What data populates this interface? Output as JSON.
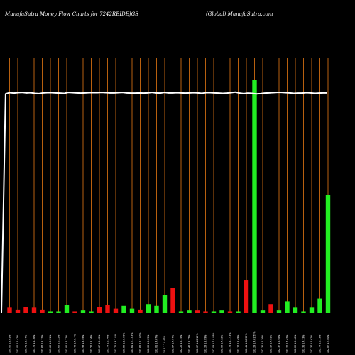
{
  "header": {
    "left": "MunafaSutra  Money Flow  Charts for 7242RBIDEJGS",
    "right": "(Global)                   MunafaSutra.com"
  },
  "colors": {
    "background": "#000000",
    "gridline": "#b8600f",
    "inflow": "#22ee22",
    "outflow": "#ee1111",
    "line": "#ffffff"
  },
  "chart_data": {
    "type": "bar",
    "title": "MunafaSutra  Money Flow  Charts for 7242RBIDEJGS",
    "categories": [
      "100.00 1.8.61%",
      "101.00 2.4.42%",
      "101.71 1.9.14%",
      "101.76 1.4.16%",
      "101.66 1.8.12%",
      "101.63 1.9.21%",
      "101.65 1.0.22%",
      "101.80 1.6.72%",
      "101.49 1.7.8.4%",
      "101.99 1.9.49%",
      "101.50 1.8.14%",
      "101.67 1.8.42%",
      "101.74 1.6.14%",
      "101.70 1.9.2.8%",
      "101.50 1.2.8.99%",
      "101.64 1.7.1.63%",
      "101.65 1.1.1.60%",
      "102.00 1.8.89%",
      "102.01 1.4.67%",
      "10.0 1.7.8.47%",
      "102.07 1.7.94%",
      "102.20 1.6.15%",
      "102.40 1.8.15%",
      "102.07 1.10.10%",
      "102.23 1.8.89%",
      "102.09 1.7.8.09%",
      "102.09 1.7.32%",
      "101.73 1.5.1.93%",
      "102.16 1.8.49%",
      "102.41 1.66.59%",
      "102.29 1.4.61.59%",
      "102.30 1.4.36%",
      "102.14 1.7.01%",
      "102.37 1.6.98%",
      "102.22 1.7.42%",
      "102.22 1.8.46%",
      "102.31 1.4.13%",
      "102.37 1.4.62%",
      "102.74 1.6.13%",
      "102.87 1.7.00%"
    ],
    "values": [
      6,
      4,
      7,
      6,
      4,
      2,
      2,
      9,
      2,
      3,
      2,
      7,
      9,
      5,
      8,
      5,
      4,
      10,
      8,
      20,
      28,
      2,
      3,
      3,
      2,
      2,
      3,
      2,
      2,
      36,
      257,
      3,
      10,
      3,
      13,
      6,
      2,
      6,
      16,
      130
    ],
    "direction": [
      "out",
      "out",
      "out",
      "out",
      "out",
      "in",
      "in",
      "in",
      "out",
      "in",
      "in",
      "out",
      "out",
      "out",
      "in",
      "in",
      "out",
      "in",
      "in",
      "in",
      "out",
      "in",
      "in",
      "out",
      "out",
      "in",
      "in",
      "out",
      "in",
      "out",
      "in",
      "in",
      "out",
      "in",
      "in",
      "in",
      "in",
      "in",
      "in",
      "in"
    ],
    "line_values": [
      0,
      86,
      86.5,
      86.3,
      86.5,
      86.6,
      86.4,
      86.5,
      86.2,
      86.1,
      86.4,
      86.5,
      86.5,
      86.4,
      86.3,
      86.2,
      86.6,
      86.5,
      86.4,
      86.3,
      86.4,
      86.5,
      86.5,
      86.5,
      86.6,
      86.5,
      86.4,
      86.4,
      86.5,
      86.6,
      86.4,
      86.3,
      86.3,
      86.4,
      86.3,
      86.4,
      86.6,
      86.4,
      86.3,
      86.6,
      86.4,
      86.4,
      86.5,
      86.4,
      86.3,
      86.4,
      86.5,
      86.4,
      86.2,
      86.5,
      86.5,
      86.4,
      86.3,
      86.2,
      86.3,
      86.5,
      86.7,
      86.3,
      86.1,
      86.3,
      86.2,
      86.0,
      86.1,
      86.3,
      86.4,
      86.5,
      86.6,
      86.6,
      86.5,
      86.4,
      86.2,
      86.3,
      86.3,
      86.5,
      86.4,
      86.2,
      86.3,
      86.4,
      86.4
    ],
    "ylim": [
      0,
      260
    ],
    "line_ylim": [
      0,
      100
    ],
    "grid": true
  }
}
